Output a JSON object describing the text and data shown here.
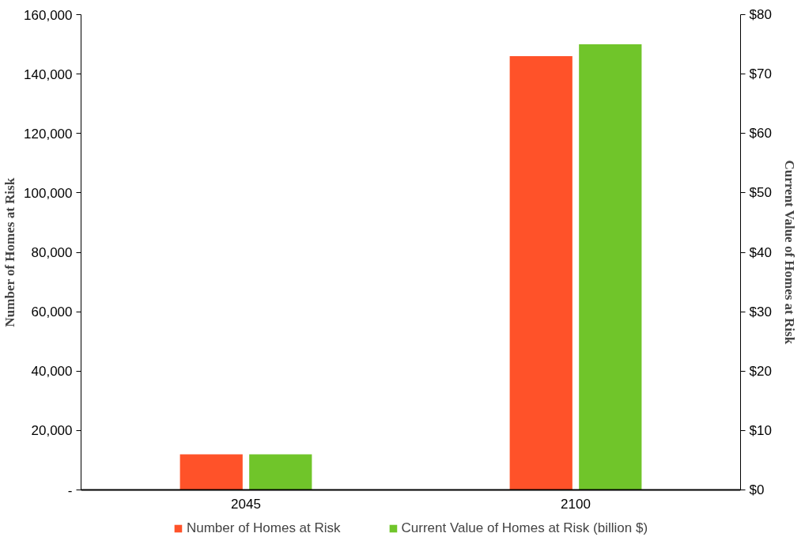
{
  "chart_data": {
    "type": "bar",
    "categories": [
      "2045",
      "2100"
    ],
    "ylabel": "Number of Homes at Risk",
    "y2label": "Current Value of Homes at Risk",
    "ylim": [
      0,
      160000
    ],
    "yticks": [
      {
        "value": 0,
        "label": "-"
      },
      {
        "value": 20000,
        "label": "20,000"
      },
      {
        "value": 40000,
        "label": "40,000"
      },
      {
        "value": 60000,
        "label": "60,000"
      },
      {
        "value": 80000,
        "label": "80,000"
      },
      {
        "value": 100000,
        "label": "100,000"
      },
      {
        "value": 120000,
        "label": "120,000"
      },
      {
        "value": 140000,
        "label": "140,000"
      },
      {
        "value": 160000,
        "label": "160,000"
      }
    ],
    "y2lim": [
      0,
      80
    ],
    "y2ticks": [
      {
        "value": 0,
        "label": "$0"
      },
      {
        "value": 10,
        "label": "$10"
      },
      {
        "value": 20,
        "label": "$20"
      },
      {
        "value": 30,
        "label": "$30"
      },
      {
        "value": 40,
        "label": "$40"
      },
      {
        "value": 50,
        "label": "$50"
      },
      {
        "value": 60,
        "label": "$60"
      },
      {
        "value": 70,
        "label": "$70"
      },
      {
        "value": 80,
        "label": "$80"
      }
    ],
    "series": [
      {
        "name": "Number of Homes at Risk",
        "color": "#ff5229",
        "values": [
          12000,
          146000
        ]
      },
      {
        "name": "Current Value of Homes at Risk (billion $)",
        "color": "#70c52a",
        "values": [
          6,
          75
        ],
        "axis": "y2"
      }
    ],
    "grid": false,
    "legend": "bottom"
  }
}
